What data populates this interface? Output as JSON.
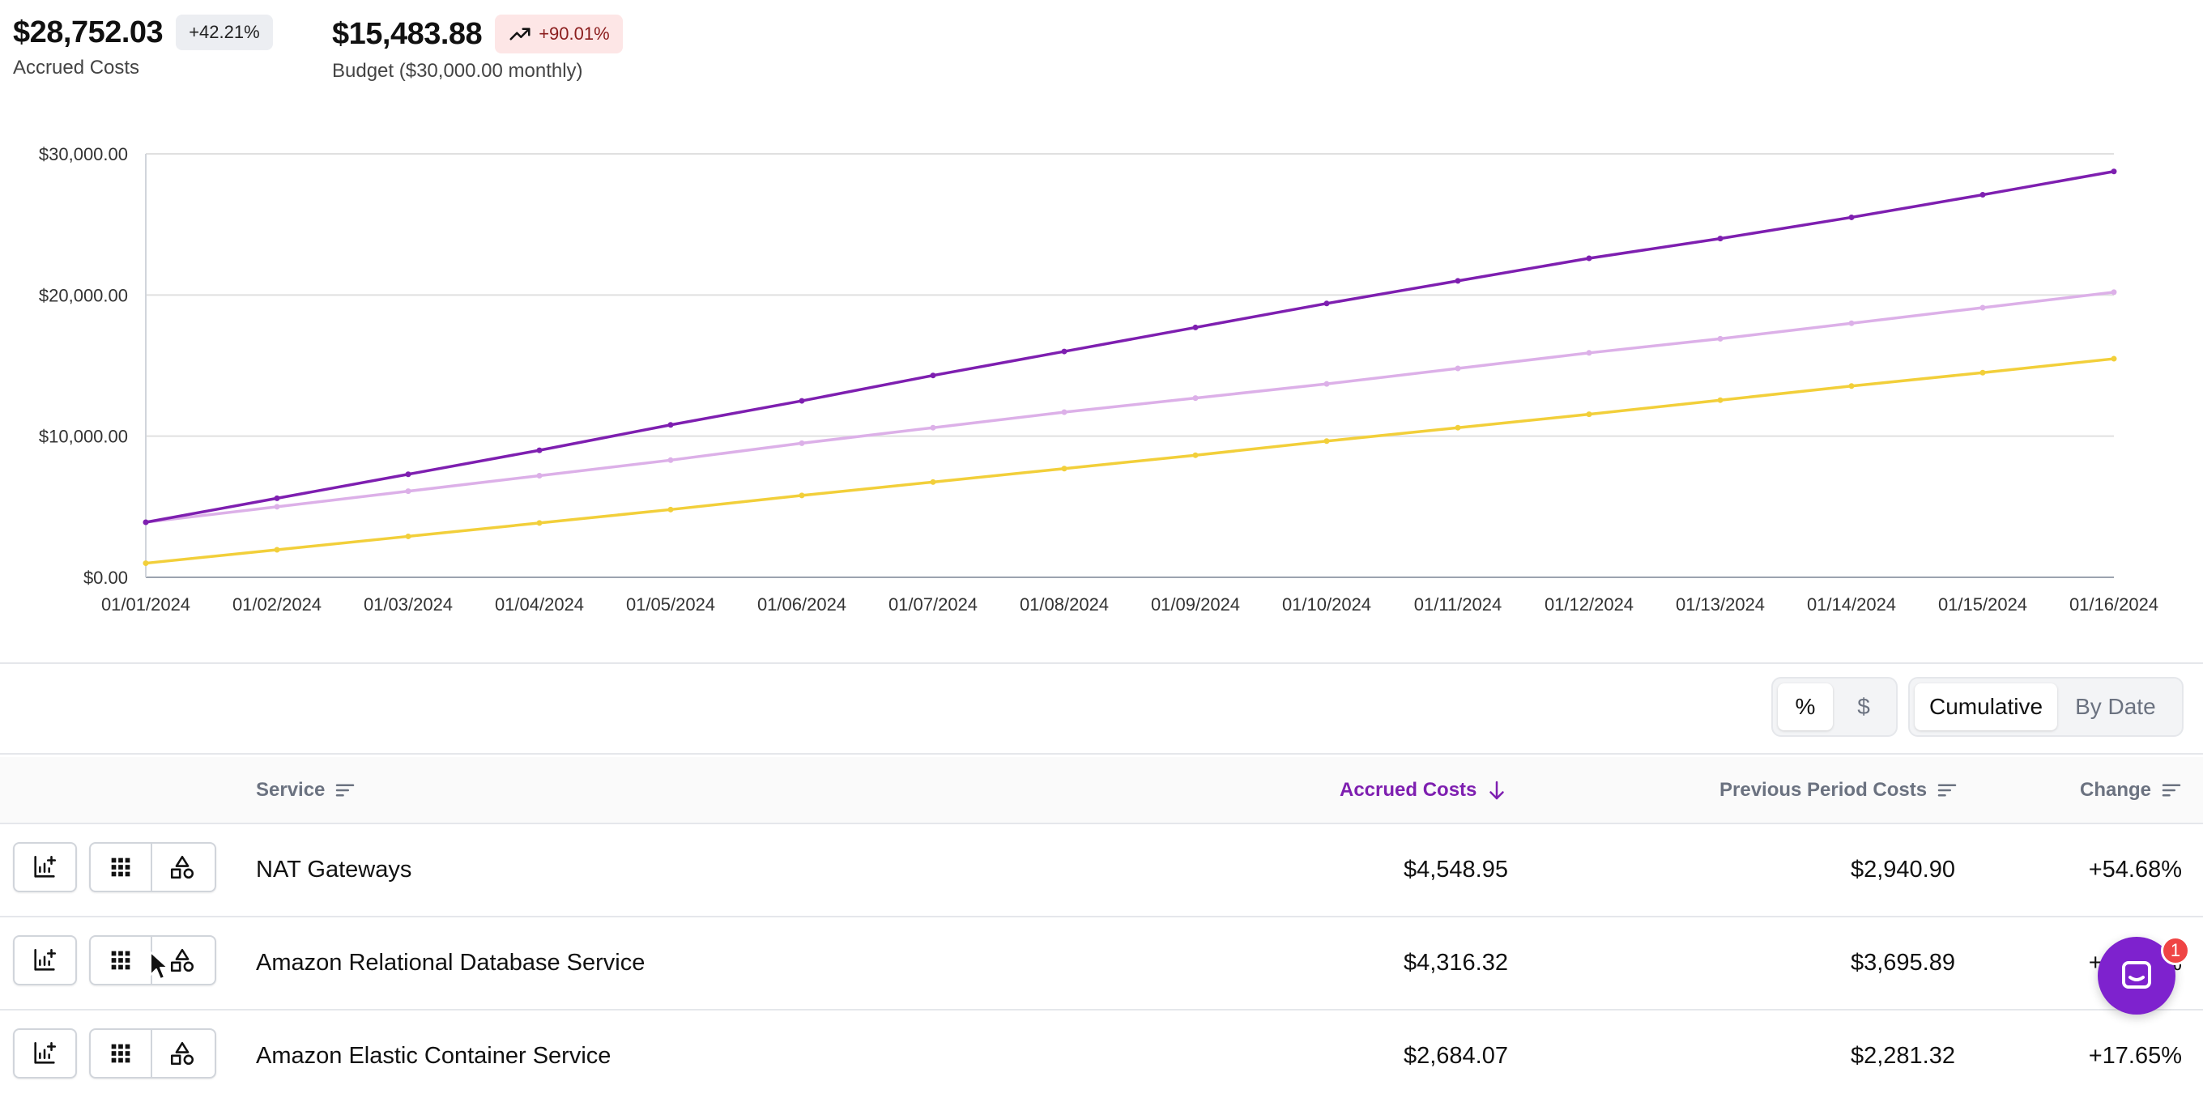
{
  "summary": {
    "accrued": {
      "value": "$28,752.03",
      "change": "+42.21%",
      "label": "Accrued Costs"
    },
    "budget": {
      "value": "$15,483.88",
      "change": "+90.01%",
      "label": "Budget ($30,000.00 monthly)",
      "trend_icon": "trending-up-icon"
    }
  },
  "chart_data": {
    "type": "line",
    "x": [
      "01/01/2024",
      "01/02/2024",
      "01/03/2024",
      "01/04/2024",
      "01/05/2024",
      "01/06/2024",
      "01/07/2024",
      "01/08/2024",
      "01/09/2024",
      "01/10/2024",
      "01/11/2024",
      "01/12/2024",
      "01/13/2024",
      "01/14/2024",
      "01/15/2024",
      "01/16/2024"
    ],
    "y_ticks": [
      "$0.00",
      "$10,000.00",
      "$20,000.00",
      "$30,000.00"
    ],
    "ylim": [
      0,
      30000
    ],
    "grid": true,
    "series": [
      {
        "color": "#7e1fb0",
        "values": [
          3900,
          5600,
          7300,
          9000,
          10800,
          12500,
          14300,
          16000,
          17700,
          19400,
          21000,
          22600,
          24000,
          25500,
          27100,
          28752
        ]
      },
      {
        "color": "#dcb0e8",
        "values": [
          3900,
          5000,
          6100,
          7200,
          8300,
          9500,
          10600,
          11700,
          12700,
          13700,
          14800,
          15900,
          16900,
          18000,
          19100,
          20200
        ]
      },
      {
        "color": "#f2cf3a",
        "values": [
          1000,
          1950,
          2900,
          3850,
          4800,
          5800,
          6750,
          7700,
          8650,
          9650,
          10600,
          11550,
          12550,
          13550,
          14500,
          15484
        ]
      }
    ]
  },
  "controls": {
    "unit_toggle": [
      "%",
      "$"
    ],
    "view_toggle": [
      "Cumulative",
      "By Date"
    ]
  },
  "table": {
    "headers": {
      "service": "Service",
      "accrued": "Accrued Costs",
      "previous": "Previous Period Costs",
      "change": "Change"
    },
    "rows": [
      {
        "service": "NAT Gateways",
        "accrued": "$4,548.95",
        "previous": "$2,940.90",
        "change": "+54.68%"
      },
      {
        "service": "Amazon Relational Database Service",
        "accrued": "$4,316.32",
        "previous": "$3,695.89",
        "change": "+16.79%"
      },
      {
        "service": "Amazon Elastic Container Service",
        "accrued": "$2,684.07",
        "previous": "$2,281.32",
        "change": "+17.65%"
      }
    ]
  },
  "chat": {
    "badge": "1"
  }
}
